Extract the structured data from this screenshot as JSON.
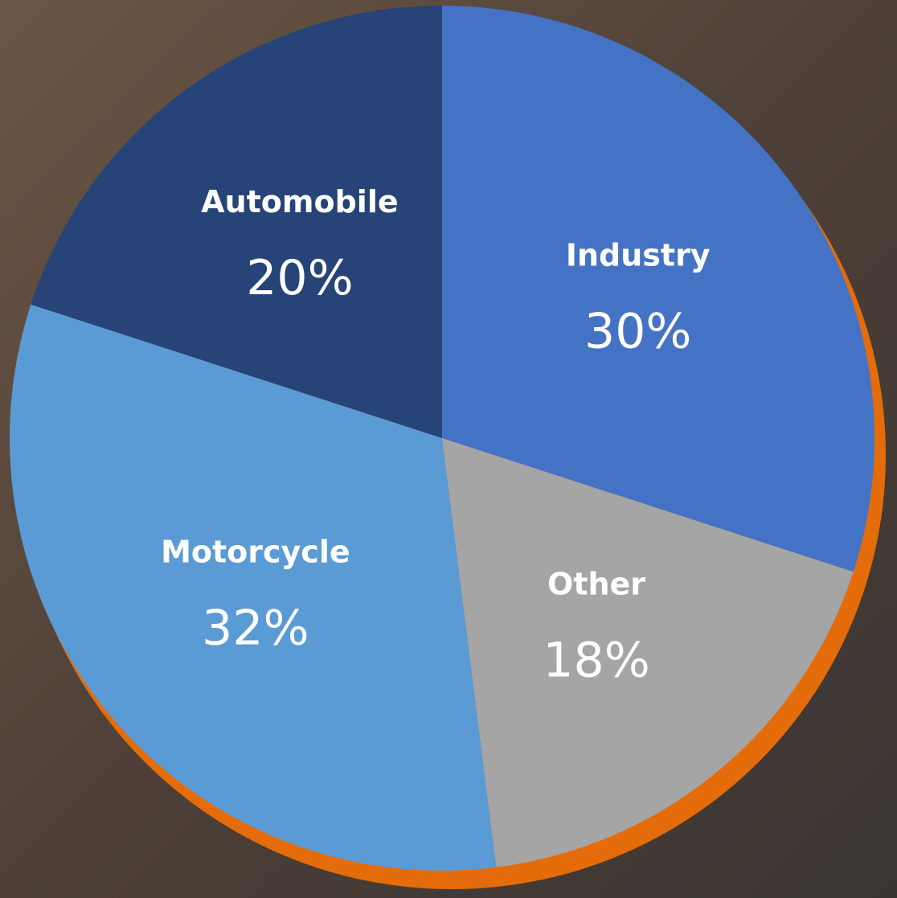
{
  "chart_data": {
    "type": "pie",
    "categories": [
      "Industry",
      "Other",
      "Motorcycle",
      "Automobile"
    ],
    "values": [
      30,
      18,
      32,
      20
    ],
    "value_labels": [
      "30%",
      "18%",
      "32%",
      "20%"
    ],
    "colors": [
      "#4472c4",
      "#a5a5a5",
      "#5b9bd5",
      "#264478"
    ]
  }
}
